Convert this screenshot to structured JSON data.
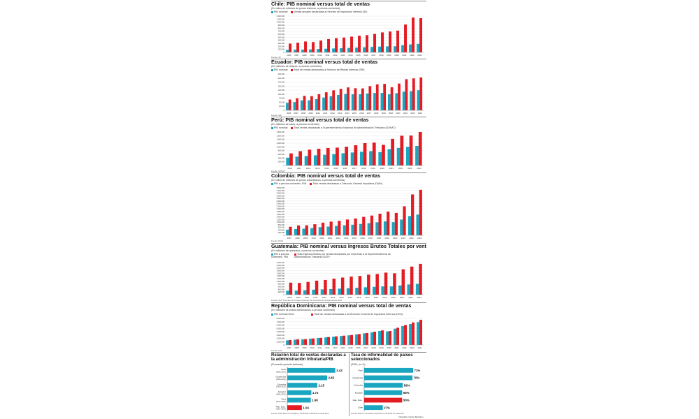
{
  "colors": {
    "pib": "#1aa6c0",
    "ventas": "#e31b23",
    "dark": "#111111"
  },
  "chile": {
    "title": "Chile: PIB nominal versus total de ventas",
    "subtitle": "(En miles de millones de pesos chilenos, a precios corrientes)",
    "legend_a": "PIB nominal",
    "legend_b": "Ventas anuales declaradas al Servicio de Impuestos Internos (SII)",
    "source": "Fuente: SII"
  },
  "ecuador": {
    "title": "Ecuador: PIB nominal versus total de ventas",
    "subtitle": "(En millones de dólares, a precios corrientes)",
    "legend_a": "PIB nominal",
    "legend_b": "Total de ventas declaradas al Servicio de Rentas Internas (SRI)",
    "source": "Fuente: SRI"
  },
  "peru": {
    "title": "Perú: PIB nominal versus total de ventas",
    "subtitle": "(En millones de soles, a precios corrientes)",
    "legend_a": "PIB nominal",
    "legend_b": "Total ventas declaradas a Superintendencia Nacional de Administración Tributaria (SUNAT)",
    "source": "Fuente: SUNAT"
  },
  "colombia": {
    "title": "Colombia: PIB nominal versus total de ventas",
    "subtitle": "(En miles de millones de pesos colombianos, a precios corrientes)",
    "legend_a": "PIB a precios corrientes, FMI",
    "legend_b": "Total ventas declaradas a Dirección General Impositiva (DIAN)",
    "source": "Fuente: DIAN"
  },
  "guatemala": {
    "title": "Guatemala: PIB nominal versus Ingresos Brutos Totales por ventas",
    "subtitle": "(En millones de quetzales, a precios corrientes)",
    "legend_a": "PIB a precios corrientes, FMI",
    "legend_b": "Total Ingresos Brutos por ventas declarados por empresas a la Superintendencia de Administración Tributaria (SAT)*",
    "source": "Fuente: SAT  *Formato de la base empresas de impuestos de Subsecretaría 2023"
  },
  "rd": {
    "title": "República Dominicana: PIB nominal versus total de ventas",
    "subtitle": "(En millones de pesos dominicanos, a precios corrientes)",
    "legend_a": "PIB nominal 2018",
    "legend_b": "Total de ventas declaradas a la Dirección General de Impuestos Internos (DGII)",
    "source": "Fuente: DGII"
  },
  "bottom": {
    "left_title": "Relación total de ventas declaradas a la administración tributaria/PIB",
    "left_sub": "(Promedio período indicado)",
    "left_source": "Fuente: FMI, Bancos centrales e Institución tributaria de cada país",
    "right_title": "Tasa de informalidad de países seleccionados",
    "right_sub": "(2024, en %)",
    "right_source": "Fuente: Bancos centrales e Institución tributaria de cada país",
    "credit": "Infografía: Carlos Medrano"
  },
  "chart_data": [
    {
      "type": "bar",
      "name": "Chile",
      "categories": [
        "2006",
        "2007",
        "2008",
        "2009",
        "2010",
        "2011",
        "2012",
        "2013",
        "2014",
        "2015",
        "2016",
        "2017",
        "2018",
        "2019",
        "2020",
        "2021",
        "2022",
        "2023"
      ],
      "series": [
        {
          "name": "PIB nominal",
          "values": [
            80000,
            88000,
            92000,
            97000,
            111000,
            122000,
            130000,
            137000,
            148000,
            158000,
            169000,
            180000,
            190000,
            196000,
            201000,
            240000,
            262000,
            281000
          ]
        },
        {
          "name": "Ventas anuales declaradas al Servicio de Impuestos Internos (SII)",
          "values": [
            290000,
            320000,
            360000,
            340000,
            390000,
            440000,
            470000,
            490000,
            520000,
            550000,
            570000,
            610000,
            660000,
            690000,
            720000,
            920000,
            1150000,
            1130000
          ]
        }
      ],
      "yticks": [
        "1.200.000",
        "1.100.000",
        "1.000.000",
        "900.000",
        "800.000",
        "700.000",
        "600.000",
        "500.000",
        "400.000",
        "300.000",
        "200.000",
        "100.000",
        "0"
      ],
      "ylim": [
        0,
        1200000
      ]
    },
    {
      "type": "bar",
      "name": "Ecuador",
      "categories": [
        "2006",
        "2007",
        "2008",
        "2009",
        "2010",
        "2011",
        "2012",
        "2013",
        "2014",
        "2015",
        "2016",
        "2017",
        "2018",
        "2019",
        "2020",
        "2021",
        "2022",
        "2023",
        "2024"
      ],
      "series": [
        {
          "name": "PIB nominal",
          "values": [
            46800,
            51000,
            61800,
            62500,
            69600,
            79300,
            87900,
            95100,
            101700,
            99300,
            99900,
            104300,
            107600,
            108100,
            99300,
            106200,
            116100,
            118800,
            124700
          ]
        },
        {
          "name": "Total de ventas declaradas al Servicio de Rentas Internas (SRI)",
          "values": [
            67000,
            75000,
            90000,
            88000,
            100000,
            112000,
            124000,
            133000,
            142000,
            137000,
            136000,
            150000,
            161000,
            164000,
            143000,
            166000,
            193000,
            198000,
            204000
          ]
        }
      ],
      "yticks": [
        "225.000",
        "200.000",
        "175.000",
        "150.000",
        "125.000",
        "100.000",
        "75.000",
        "50.000",
        "25.000",
        "0"
      ],
      "ylim": [
        0,
        225000
      ]
    },
    {
      "type": "bar",
      "name": "Perú",
      "categories": [
        "2010",
        "2011",
        "2012",
        "2013",
        "2014",
        "2015",
        "2016",
        "2017",
        "2018",
        "2019",
        "2020",
        "2021",
        "2022",
        "2023",
        "2024"
      ],
      "series": [
        {
          "name": "PIB nominal",
          "values": [
            420000,
            475000,
            508000,
            546000,
            575000,
            612000,
            658000,
            699000,
            738000,
            771000,
            720000,
            878000,
            945000,
            1002000,
            1050000
          ]
        },
        {
          "name": "Total ventas declaradas a Superintendencia Nacional de Administración Tributaria (SUNAT)",
          "values": [
            650000,
            770000,
            850000,
            900000,
            940000,
            960000,
            1010000,
            1090000,
            1200000,
            1230000,
            1110000,
            1430000,
            1600000,
            1610000,
            1800000
          ]
        }
      ],
      "yticks": [
        "1.800.000",
        "1.600.000",
        "1.400.000",
        "1.200.000",
        "1.000.000",
        "800.000",
        "600.000",
        "400.000",
        "200.000",
        "0"
      ],
      "ylim": [
        0,
        1800000
      ]
    },
    {
      "type": "bar",
      "name": "Colombia",
      "categories": [
        "2007",
        "2008",
        "2009",
        "2010",
        "2011",
        "2012",
        "2013",
        "2014",
        "2015",
        "2016",
        "2017",
        "2018",
        "2019",
        "2020",
        "2021",
        "2022",
        "2023"
      ],
      "series": [
        {
          "name": "PIB a precios corrientes, FMI",
          "values": [
            431000,
            481000,
            504000,
            544000,
            619000,
            666000,
            714000,
            763000,
            804000,
            864000,
            920000,
            987000,
            1061000,
            998000,
            1192000,
            1462000,
            1572000
          ]
        },
        {
          "name": "Total ventas declaradas a Dirección General Impositiva (DIAN)",
          "values": [
            650000,
            750000,
            760000,
            840000,
            960000,
            1040000,
            1100000,
            1200000,
            1280000,
            1400000,
            1500000,
            1640000,
            1800000,
            1700000,
            2200000,
            3100000,
            3450000
          ]
        }
      ],
      "yticks": [
        "3.600.000",
        "3.400.000",
        "3.200.000",
        "3.000.000",
        "2.800.000",
        "2.600.000",
        "2.400.000",
        "2.200.000",
        "2.000.000",
        "1.800.000",
        "1.600.000",
        "1.400.000",
        "1.200.000",
        "1.000.000",
        "800.000",
        "600.000",
        "400.000",
        "200.000",
        "0"
      ],
      "ylim": [
        0,
        3600000
      ]
    },
    {
      "type": "bar",
      "name": "Guatemala",
      "categories": [
        "2008",
        "2009",
        "2010",
        "2011",
        "2012",
        "2013",
        "2014",
        "2015",
        "2016",
        "2017",
        "2018",
        "2019",
        "2020",
        "2021",
        "2022",
        "2023"
      ],
      "series": [
        {
          "name": "PIB a precios corrientes, FMI",
          "values": [
            295000,
            307000,
            333000,
            371000,
            394000,
            424000,
            454000,
            488000,
            522000,
            555000,
            584000,
            620000,
            618000,
            692000,
            765000,
            810000
          ]
        },
        {
          "name": "Total Ingresos Brutos por ventas declarados por empresas a la Superintendencia de Administración Tributaria (SAT)*",
          "values": [
            900000,
            880000,
            950000,
            1050000,
            1100000,
            1200000,
            1280000,
            1350000,
            1400000,
            1500000,
            1550000,
            1650000,
            1600000,
            1900000,
            2100000,
            2300000
          ]
        }
      ],
      "yticks": [
        "2.400.000",
        "2.200.000",
        "2.000.000",
        "1.800.000",
        "1.600.000",
        "1.400.000",
        "1.200.000",
        "1.000.000",
        "800.000",
        "600.000",
        "400.000",
        "200.000",
        "0"
      ],
      "ylim": [
        0,
        2400000
      ]
    },
    {
      "type": "bar",
      "name": "República Dominicana",
      "categories": [
        "2007",
        "2008",
        "2009",
        "2010",
        "2011",
        "2012",
        "2013",
        "2014",
        "2015",
        "2016",
        "2017",
        "2018",
        "2019",
        "2020",
        "2021",
        "2022",
        "2023",
        "2024"
      ],
      "series": [
        {
          "name": "PIB nominal 2018",
          "values": [
            1400000,
            1600000,
            1700000,
            1900000,
            2100000,
            2300000,
            2500000,
            2700000,
            2900000,
            3200000,
            3500000,
            3800000,
            4200000,
            4100000,
            4900000,
            5700000,
            6300000,
            6900000
          ]
        },
        {
          "name": "Total de ventas declaradas a la Dirección General de Impuestos Internos (DGII)",
          "values": [
            1500000,
            1700000,
            1750000,
            1950000,
            2150000,
            2400000,
            2600000,
            2800000,
            3000000,
            3300000,
            3600000,
            4000000,
            4400000,
            4200000,
            5200000,
            6000000,
            6800000,
            7600000
          ]
        }
      ],
      "yticks": [
        "8.000.000",
        "7.000.000",
        "6.000.000",
        "5.000.000",
        "4.000.000",
        "3.000.000",
        "2.000.000",
        "1.000.000",
        "0"
      ],
      "ylim": [
        0,
        8000000
      ]
    },
    {
      "type": "bar",
      "name": "Relación total de ventas declaradas a la administración tributaria/PIB",
      "orientation": "horizontal",
      "categories": [
        "Chile (2006-2024)",
        "Guatemala (2008-2023)",
        "Colombia (2009-2023)",
        "Ecuador (2006-2024)",
        "Perú (2010-2024)",
        "Rep. Dom. (2007-2024)"
      ],
      "values": [
        3.43,
        2.85,
        2.15,
        1.72,
        1.68,
        1.04
      ],
      "labels": [
        "3.43",
        "2.85",
        "2.15",
        "1.72",
        "1.68",
        "1.04"
      ],
      "highlight": [
        false,
        false,
        false,
        false,
        false,
        true
      ]
    },
    {
      "type": "bar",
      "name": "Tasa de informalidad de países seleccionados",
      "orientation": "horizontal",
      "categories": [
        "Perú",
        "Guatemala",
        "Colombia",
        "Ecuador",
        "Rep. Dom.",
        "Chile"
      ],
      "values": [
        71,
        70,
        56,
        55,
        55,
        27
      ],
      "labels": [
        "71%",
        "70%",
        "56%",
        "55%",
        "55%",
        "27%"
      ],
      "highlight": [
        false,
        false,
        false,
        false,
        true,
        false
      ]
    }
  ]
}
